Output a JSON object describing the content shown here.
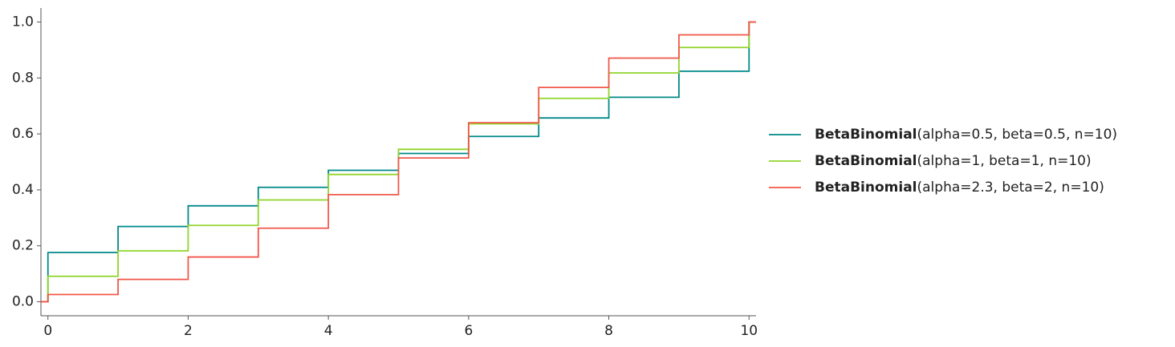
{
  "chart_data": {
    "type": "step",
    "x": [
      0,
      1,
      2,
      3,
      4,
      5,
      6,
      7,
      8,
      9,
      10
    ],
    "series": [
      {
        "name": "BetaBinomial(alpha=0.5, beta=0.5, n=10)",
        "color": "#00898a",
        "values": [
          0.176,
          0.269,
          0.343,
          0.409,
          0.47,
          0.53,
          0.591,
          0.657,
          0.731,
          0.824,
          1.0
        ]
      },
      {
        "name": "BetaBinomial(alpha=1, beta=1, n=10)",
        "color": "#91d42b",
        "values": [
          0.091,
          0.182,
          0.273,
          0.364,
          0.455,
          0.545,
          0.636,
          0.727,
          0.818,
          0.909,
          1.0
        ]
      },
      {
        "name": "BetaBinomial(alpha=2.3, beta=2, n=10)",
        "color": "#f1574a",
        "values": [
          0.026,
          0.08,
          0.16,
          0.263,
          0.383,
          0.514,
          0.64,
          0.766,
          0.871,
          0.954,
          1.0
        ]
      }
    ],
    "xlim": [
      -0.1,
      10.1
    ],
    "xticks": [
      0,
      2,
      4,
      6,
      8,
      10
    ],
    "ylim": [
      -0.05,
      1.05
    ],
    "yticks": [
      {
        "value": 0,
        "label": "0.0"
      },
      0.2,
      0.4,
      0.6,
      0.8,
      {
        "value": 1,
        "label": "1.0"
      }
    ],
    "legend": "right"
  }
}
